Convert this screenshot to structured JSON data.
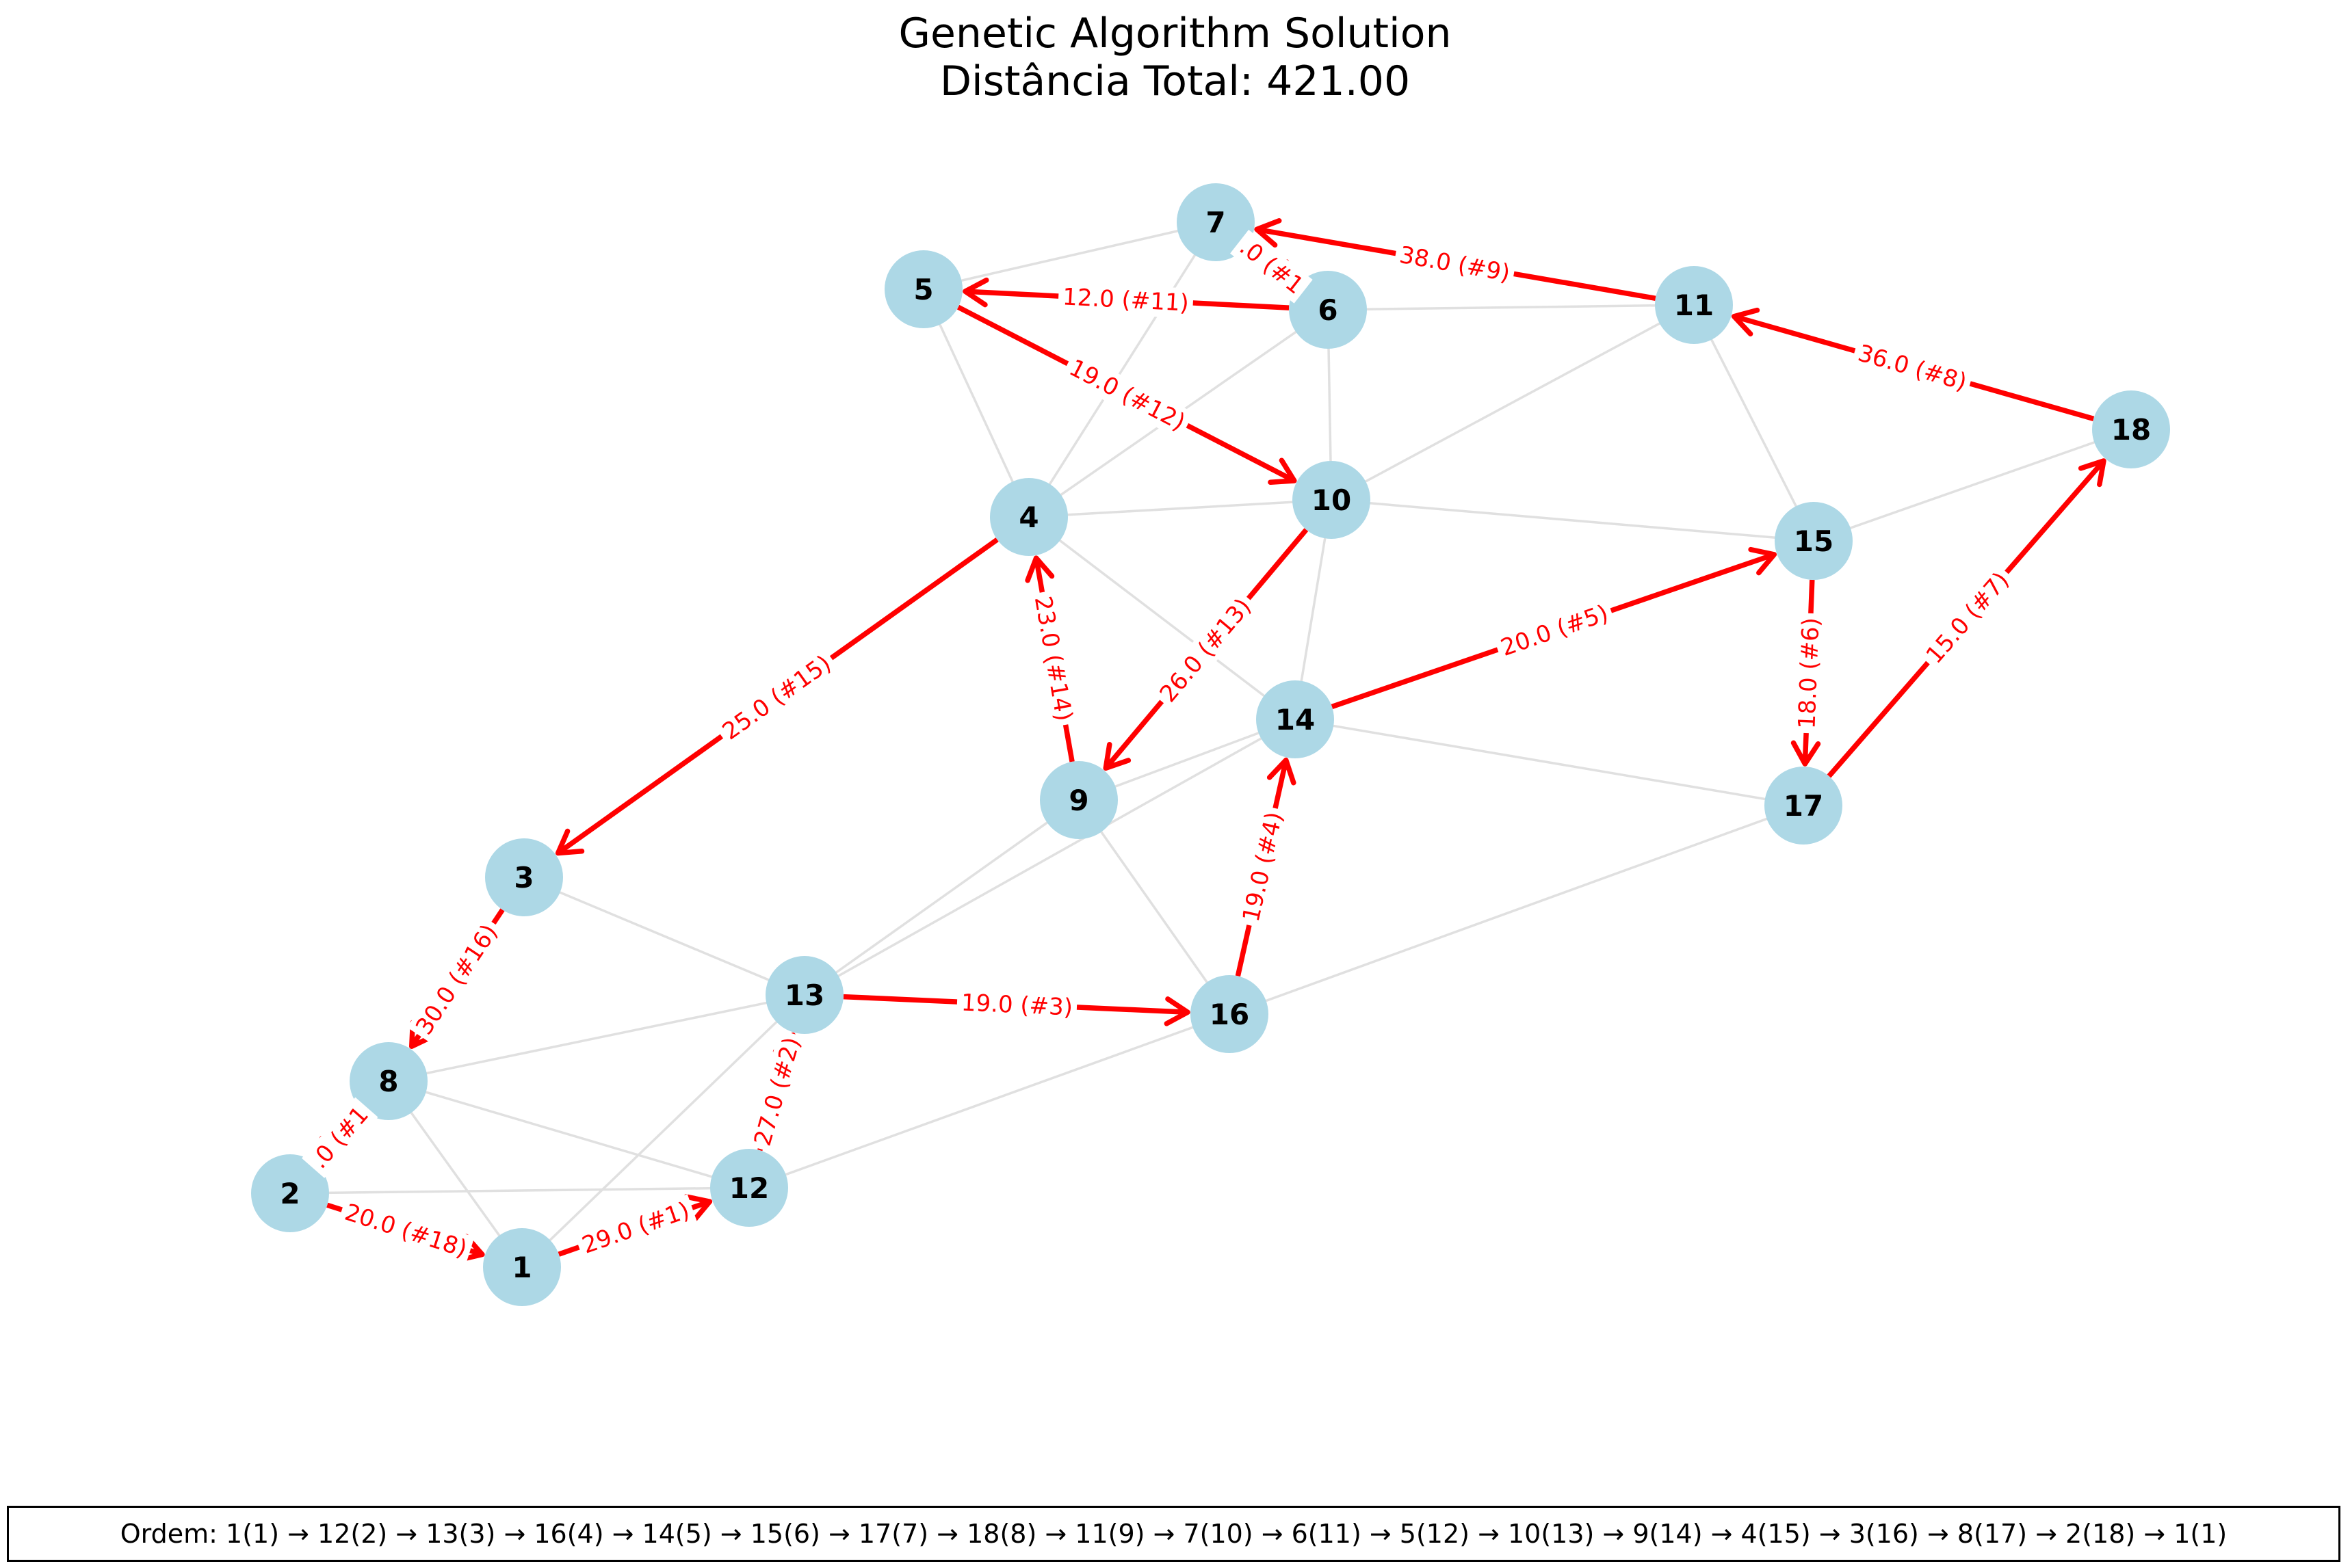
{
  "title": {
    "line1": "Genetic Algorithm Solution",
    "line2": "Distância Total: 421.00"
  },
  "colors": {
    "node": "#add8e6",
    "tour_edge": "#ff0000",
    "background_edge": "#e0e0e0"
  },
  "graph": {
    "nodes": [
      "1",
      "2",
      "3",
      "4",
      "5",
      "6",
      "7",
      "8",
      "9",
      "10",
      "11",
      "12",
      "13",
      "14",
      "15",
      "16",
      "17",
      "18"
    ],
    "background_edges": [
      [
        "7",
        "5"
      ],
      [
        "7",
        "4"
      ],
      [
        "5",
        "4"
      ],
      [
        "6",
        "4"
      ],
      [
        "6",
        "11"
      ],
      [
        "6",
        "10"
      ],
      [
        "4",
        "10"
      ],
      [
        "10",
        "11"
      ],
      [
        "10",
        "15"
      ],
      [
        "10",
        "14"
      ],
      [
        "4",
        "14"
      ],
      [
        "11",
        "15"
      ],
      [
        "15",
        "18"
      ],
      [
        "14",
        "9"
      ],
      [
        "14",
        "13"
      ],
      [
        "14",
        "17"
      ],
      [
        "9",
        "13"
      ],
      [
        "9",
        "16"
      ],
      [
        "17",
        "16"
      ],
      [
        "3",
        "13"
      ],
      [
        "13",
        "8"
      ],
      [
        "13",
        "1"
      ],
      [
        "8",
        "12"
      ],
      [
        "8",
        "1"
      ],
      [
        "2",
        "12"
      ],
      [
        "12",
        "16"
      ]
    ],
    "tour_edges": [
      {
        "from": "1",
        "to": "12",
        "label": "29.0 (#1)"
      },
      {
        "from": "12",
        "to": "13",
        "label": "27.0 (#2)"
      },
      {
        "from": "13",
        "to": "16",
        "label": "19.0 (#3)"
      },
      {
        "from": "16",
        "to": "14",
        "label": "19.0 (#4)"
      },
      {
        "from": "14",
        "to": "15",
        "label": "20.0 (#5)"
      },
      {
        "from": "15",
        "to": "17",
        "label": "18.0 (#6)"
      },
      {
        "from": "17",
        "to": "18",
        "label": "15.0 (#7)"
      },
      {
        "from": "18",
        "to": "11",
        "label": "36.0 (#8)"
      },
      {
        "from": "11",
        "to": "7",
        "label": "38.0 (#9)"
      },
      {
        "from": "7",
        "to": "6",
        "label": ".0 (#1"
      },
      {
        "from": "6",
        "to": "5",
        "label": "12.0 (#11)"
      },
      {
        "from": "5",
        "to": "10",
        "label": "19.0 (#12)"
      },
      {
        "from": "10",
        "to": "9",
        "label": "26.0 (#13)"
      },
      {
        "from": "9",
        "to": "4",
        "label": "23.0 (#14)"
      },
      {
        "from": "4",
        "to": "3",
        "label": "25.0 (#15)"
      },
      {
        "from": "3",
        "to": "8",
        "label": "30.0 (#16)"
      },
      {
        "from": "8",
        "to": "2",
        "label": ".0 (#1"
      },
      {
        "from": "2",
        "to": "1",
        "label": "20.0 (#18)"
      }
    ]
  },
  "order_text": "Ordem: 1(1) → 12(2) → 13(3) → 16(4) → 14(5) → 15(6) → 17(7) → 18(8) → 11(9) → 7(10) → 6(11) → 5(12) → 10(13) → 9(14) → 4(15) → 3(16) → 8(17) → 2(18) → 1(1)"
}
